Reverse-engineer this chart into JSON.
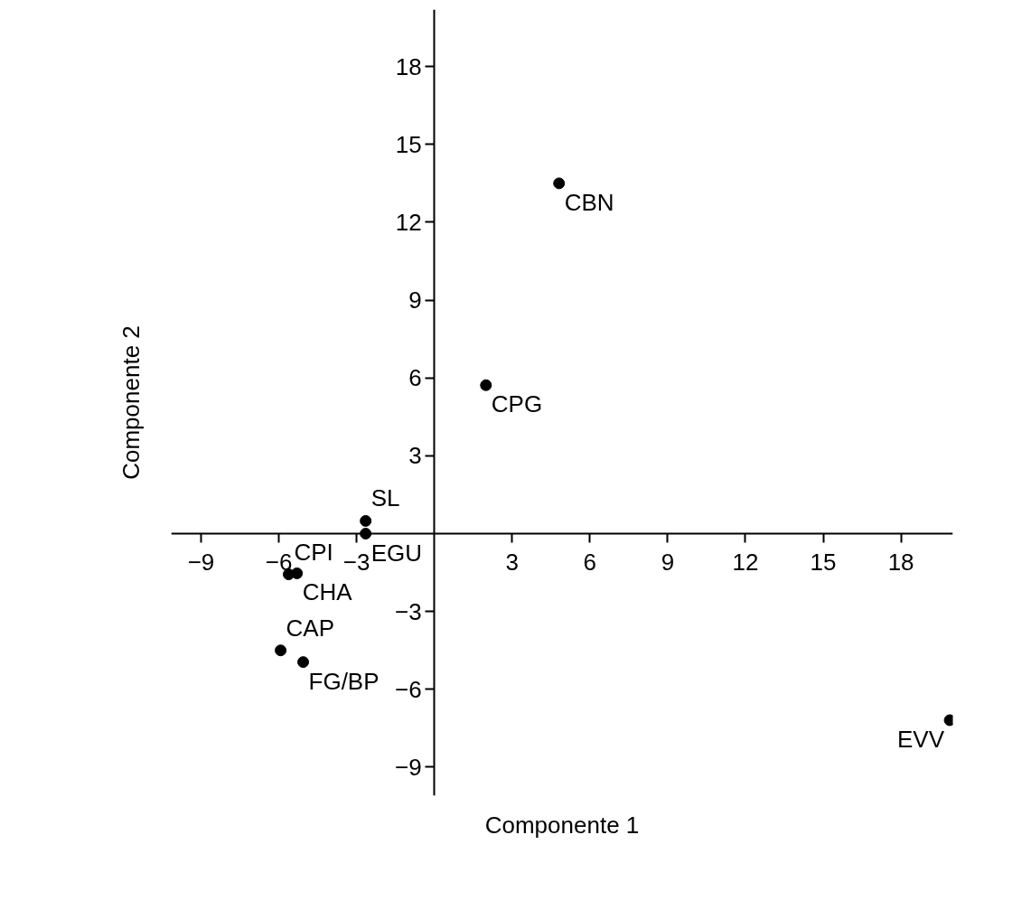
{
  "chart_data": {
    "type": "scatter",
    "xlabel": "Componente 1",
    "ylabel": "Componente 2",
    "x": [
      4.81,
      1.99,
      19.88,
      -2.65,
      -2.65,
      -5.62,
      -5.3,
      -5.93,
      -5.06
    ],
    "series": [
      {
        "color": "#000000",
        "values": [
          13.5,
          5.72,
          -7.19,
          0.49,
          0.0,
          -1.57,
          -1.53,
          -4.5,
          -4.95
        ]
      }
    ],
    "annotations": [
      {
        "text": "CBN",
        "x": 4.81,
        "y": 13.5
      },
      {
        "text": "CPG",
        "x": 1.99,
        "y": 5.72
      },
      {
        "text": "EVV",
        "x": 19.88,
        "y": -7.19
      },
      {
        "text": "SL",
        "x": -2.65,
        "y": 0.49
      },
      {
        "text": "EGU",
        "x": -2.65,
        "y": 0.0
      },
      {
        "text": "CPI",
        "x": -5.62,
        "y": -1.57
      },
      {
        "text": "CHA",
        "x": -5.3,
        "y": -1.53
      },
      {
        "text": "CAP",
        "x": -5.93,
        "y": -4.5
      },
      {
        "text": "FG/BP",
        "x": -5.06,
        "y": -4.95
      }
    ],
    "xlim": [
      -10.15,
      20.0
    ],
    "ylim": [
      -10.1,
      20.2
    ],
    "xticks": [
      -9,
      -6,
      -3,
      3,
      6,
      9,
      12,
      15,
      18
    ],
    "yticks": [
      -9,
      -6,
      -3,
      3,
      6,
      9,
      12,
      15,
      18
    ],
    "marker": "circle",
    "grid": false
  }
}
